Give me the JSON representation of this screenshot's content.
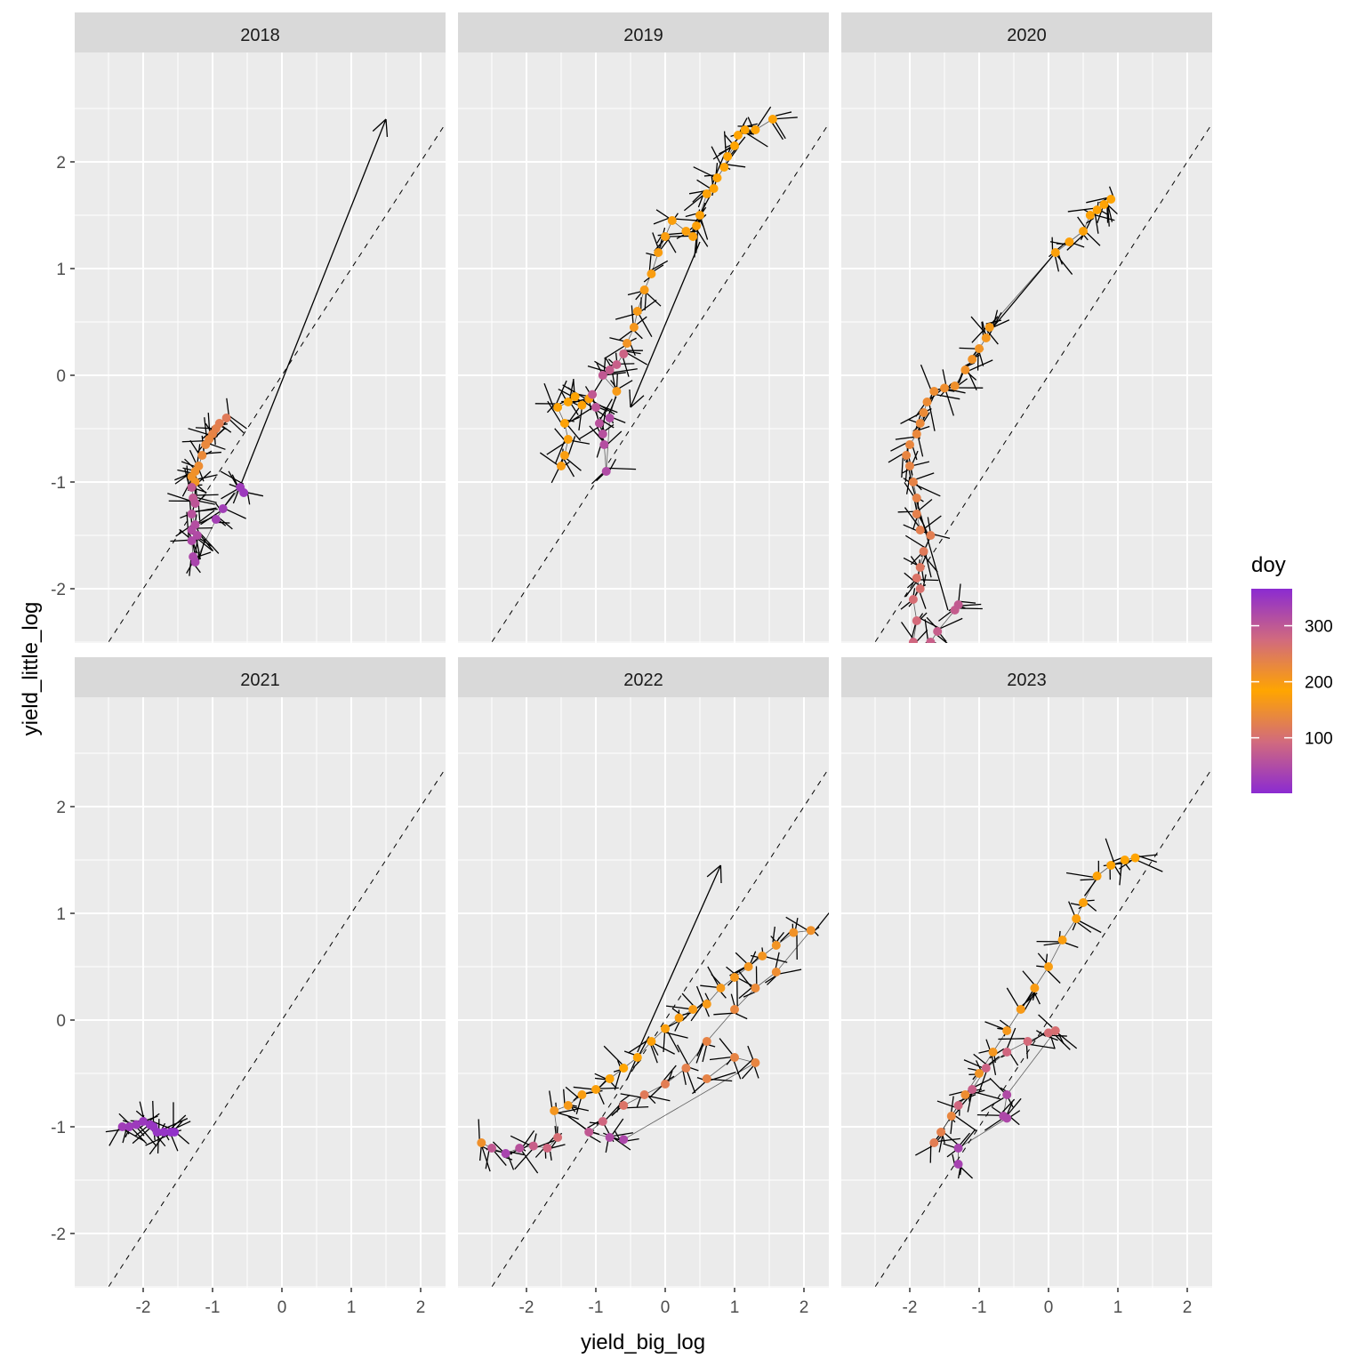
{
  "chart_data": {
    "type": "scatter",
    "subtype": "faceted path with points, segments (arrows) and identity line",
    "xlabel": "yield_big_log",
    "ylabel": "yield_little_log",
    "xlim": [
      -2.8,
      2.3
    ],
    "ylim": [
      -2.8,
      2.7
    ],
    "x_ticks": [
      -2,
      -1,
      0,
      1,
      2
    ],
    "y_ticks": [
      -2,
      -1,
      0,
      1,
      2
    ],
    "x_tick_labels": [
      "-2",
      "-1",
      "0",
      "1",
      "2"
    ],
    "y_tick_labels": [
      "-2",
      "-1",
      "0",
      "1",
      "2"
    ],
    "grid": true,
    "reference_line": {
      "type": "identity",
      "slope": 1,
      "intercept": 0,
      "style": "dashed"
    },
    "legend": {
      "title": "doy",
      "type": "colorbar",
      "placement": "right",
      "range": [
        1,
        366
      ],
      "breaks": [
        100,
        200,
        300
      ],
      "break_labels": [
        "100",
        "200",
        "300"
      ],
      "colors": {
        "low": "#8B2BD1",
        "mid": "#FFA500",
        "high": "#8B2BD1",
        "mid_value": 183,
        "q1": "#D46A7A",
        "q3": "#D46A7A"
      }
    },
    "panels": [
      {
        "title": "2018",
        "points": [
          [
            -0.8,
            -0.4,
            250
          ],
          [
            -0.9,
            -0.45,
            245
          ],
          [
            -0.95,
            -0.5,
            240
          ],
          [
            -1.0,
            -0.55,
            235
          ],
          [
            -1.05,
            -0.6,
            230
          ],
          [
            -1.1,
            -0.65,
            228
          ],
          [
            -1.15,
            -0.75,
            225
          ],
          [
            -1.2,
            -0.85,
            220
          ],
          [
            -1.25,
            -0.9,
            215
          ],
          [
            -1.3,
            -0.95,
            212
          ],
          [
            -1.25,
            -1.0,
            210
          ],
          [
            -1.3,
            -1.05,
            300
          ],
          [
            -1.28,
            -1.15,
            300
          ],
          [
            -1.25,
            -1.2,
            305
          ],
          [
            -1.3,
            -1.3,
            310
          ],
          [
            -1.25,
            -1.4,
            315
          ],
          [
            -1.3,
            -1.45,
            318
          ],
          [
            -1.22,
            -1.5,
            320
          ],
          [
            -1.3,
            -1.55,
            322
          ],
          [
            -1.28,
            -1.7,
            325
          ],
          [
            -1.25,
            -1.75,
            328
          ],
          [
            -0.95,
            -1.35,
            335
          ],
          [
            -0.85,
            -1.25,
            338
          ],
          [
            -0.6,
            -1.05,
            342
          ],
          [
            -0.55,
            -1.1,
            345
          ]
        ],
        "arrows": [
          [
            -0.7,
            -1.2,
            1.5,
            2.4
          ]
        ]
      },
      {
        "title": "2019",
        "points": [
          [
            -1.5,
            -0.85,
            170
          ],
          [
            -1.45,
            -0.75,
            172
          ],
          [
            -1.4,
            -0.6,
            175
          ],
          [
            -1.45,
            -0.45,
            178
          ],
          [
            -1.55,
            -0.3,
            180
          ],
          [
            -1.4,
            -0.25,
            182
          ],
          [
            -1.3,
            -0.2,
            185
          ],
          [
            -1.2,
            -0.28,
            188
          ],
          [
            -1.1,
            -0.22,
            190
          ],
          [
            -1.05,
            -0.18,
            300
          ],
          [
            -1.0,
            -0.3,
            305
          ],
          [
            -0.95,
            -0.45,
            310
          ],
          [
            -0.9,
            -0.55,
            312
          ],
          [
            -0.88,
            -0.65,
            315
          ],
          [
            -0.85,
            -0.9,
            320
          ],
          [
            -0.8,
            -0.4,
            318
          ],
          [
            -0.7,
            -0.15,
            200
          ],
          [
            -0.9,
            0.0,
            300
          ],
          [
            -0.8,
            0.05,
            295
          ],
          [
            -0.7,
            0.1,
            290
          ],
          [
            -0.6,
            0.2,
            285
          ],
          [
            -0.55,
            0.3,
            210
          ],
          [
            -0.45,
            0.45,
            205
          ],
          [
            -0.4,
            0.6,
            200
          ],
          [
            -0.3,
            0.8,
            198
          ],
          [
            -0.2,
            0.95,
            196
          ],
          [
            -0.1,
            1.15,
            195
          ],
          [
            0.0,
            1.3,
            194
          ],
          [
            0.1,
            1.45,
            193
          ],
          [
            0.3,
            1.35,
            192
          ],
          [
            0.4,
            1.3,
            191
          ],
          [
            0.45,
            1.4,
            190
          ],
          [
            0.5,
            1.5,
            189
          ],
          [
            0.6,
            1.7,
            188
          ],
          [
            0.7,
            1.75,
            187
          ],
          [
            0.75,
            1.85,
            186
          ],
          [
            0.85,
            1.95,
            185
          ],
          [
            0.9,
            2.05,
            184
          ],
          [
            1.0,
            2.15,
            183
          ],
          [
            1.05,
            2.25,
            182
          ],
          [
            1.15,
            2.3,
            181
          ],
          [
            1.3,
            2.3,
            180
          ],
          [
            1.55,
            2.4,
            179
          ]
        ],
        "arrows": [
          [
            0.5,
            1.25,
            -0.5,
            -0.3
          ]
        ]
      },
      {
        "title": "2020",
        "points": [
          [
            0.9,
            1.65,
            185
          ],
          [
            0.8,
            1.6,
            186
          ],
          [
            0.7,
            1.55,
            187
          ],
          [
            0.6,
            1.5,
            188
          ],
          [
            0.5,
            1.35,
            189
          ],
          [
            0.3,
            1.25,
            190
          ],
          [
            0.1,
            1.15,
            191
          ],
          [
            -0.85,
            0.45,
            200
          ],
          [
            -0.9,
            0.35,
            205
          ],
          [
            -1.0,
            0.25,
            210
          ],
          [
            -1.1,
            0.15,
            212
          ],
          [
            -1.2,
            0.05,
            214
          ],
          [
            -1.35,
            -0.1,
            216
          ],
          [
            -1.5,
            -0.12,
            218
          ],
          [
            -1.65,
            -0.15,
            220
          ],
          [
            -1.75,
            -0.25,
            222
          ],
          [
            -1.8,
            -0.35,
            224
          ],
          [
            -1.85,
            -0.45,
            226
          ],
          [
            -1.9,
            -0.55,
            228
          ],
          [
            -2.0,
            -0.65,
            230
          ],
          [
            -2.05,
            -0.75,
            232
          ],
          [
            -2.0,
            -0.85,
            234
          ],
          [
            -1.95,
            -1.0,
            236
          ],
          [
            -1.9,
            -1.15,
            238
          ],
          [
            -1.9,
            -1.3,
            240
          ],
          [
            -1.85,
            -1.45,
            242
          ],
          [
            -1.7,
            -1.5,
            244
          ],
          [
            -1.8,
            -1.65,
            250
          ],
          [
            -1.85,
            -1.8,
            255
          ],
          [
            -1.9,
            -1.9,
            260
          ],
          [
            -1.85,
            -2.0,
            265
          ],
          [
            -1.95,
            -2.1,
            270
          ],
          [
            -1.9,
            -2.3,
            275
          ],
          [
            -1.95,
            -2.5,
            280
          ],
          [
            -1.85,
            -2.6,
            285
          ],
          [
            -1.7,
            -2.5,
            290
          ],
          [
            -1.6,
            -2.4,
            292
          ],
          [
            -1.35,
            -2.2,
            295
          ],
          [
            -1.3,
            -2.15,
            298
          ]
        ],
        "arrows": [
          [
            0.1,
            1.15,
            -0.8,
            0.45
          ],
          [
            -1.45,
            -2.2,
            -2.0,
            -0.95
          ]
        ]
      },
      {
        "title": "2021",
        "points": [
          [
            -2.3,
            -1.0,
            340
          ],
          [
            -2.2,
            -1.0,
            342
          ],
          [
            -2.1,
            -0.98,
            344
          ],
          [
            -2.0,
            -0.95,
            346
          ],
          [
            -1.9,
            -0.98,
            348
          ],
          [
            -1.85,
            -1.0,
            350
          ],
          [
            -1.8,
            -1.05,
            352
          ],
          [
            -1.7,
            -1.05,
            354
          ],
          [
            -1.6,
            -1.05,
            356
          ],
          [
            -1.55,
            -1.05,
            358
          ]
        ],
        "arrows": []
      },
      {
        "title": "2022",
        "points": [
          [
            -2.65,
            -1.15,
            150
          ],
          [
            -2.5,
            -1.2,
            300
          ],
          [
            -2.3,
            -1.25,
            330
          ],
          [
            -2.1,
            -1.2,
            310
          ],
          [
            -1.9,
            -1.18,
            290
          ],
          [
            -1.7,
            -1.2,
            280
          ],
          [
            -1.55,
            -1.1,
            270
          ],
          [
            -1.6,
            -0.85,
            160
          ],
          [
            -1.4,
            -0.8,
            165
          ],
          [
            -1.2,
            -0.7,
            170
          ],
          [
            -1.0,
            -0.65,
            175
          ],
          [
            -0.8,
            -0.55,
            180
          ],
          [
            -0.6,
            -0.45,
            183
          ],
          [
            -0.4,
            -0.35,
            186
          ],
          [
            -0.2,
            -0.2,
            190
          ],
          [
            0.0,
            -0.08,
            193
          ],
          [
            0.2,
            0.02,
            195
          ],
          [
            0.4,
            0.1,
            198
          ],
          [
            0.6,
            0.15,
            200
          ],
          [
            0.8,
            0.3,
            202
          ],
          [
            1.0,
            0.4,
            204
          ],
          [
            1.2,
            0.5,
            206
          ],
          [
            1.4,
            0.6,
            208
          ],
          [
            1.6,
            0.7,
            210
          ],
          [
            1.85,
            0.82,
            212
          ],
          [
            2.1,
            0.84,
            214
          ],
          [
            1.6,
            0.45,
            220
          ],
          [
            1.3,
            0.3,
            225
          ],
          [
            1.0,
            0.1,
            230
          ],
          [
            0.6,
            -0.2,
            235
          ],
          [
            0.3,
            -0.45,
            240
          ],
          [
            0.0,
            -0.6,
            245
          ],
          [
            -0.3,
            -0.7,
            250
          ],
          [
            -0.6,
            -0.8,
            260
          ],
          [
            -0.9,
            -0.95,
            280
          ],
          [
            -1.1,
            -1.05,
            300
          ],
          [
            -0.8,
            -1.1,
            320
          ],
          [
            -0.6,
            -1.12,
            325
          ],
          [
            1.3,
            -0.4,
            232
          ],
          [
            1.0,
            -0.35,
            234
          ],
          [
            0.6,
            -0.55,
            236
          ]
        ],
        "arrows": [
          [
            -0.4,
            -0.3,
            0.8,
            1.45
          ]
        ]
      },
      {
        "title": "2023",
        "points": [
          [
            1.25,
            1.52,
            182
          ],
          [
            1.1,
            1.5,
            184
          ],
          [
            0.9,
            1.45,
            186
          ],
          [
            0.7,
            1.35,
            188
          ],
          [
            0.5,
            1.1,
            190
          ],
          [
            0.4,
            0.95,
            192
          ],
          [
            0.2,
            0.75,
            194
          ],
          [
            0.0,
            0.5,
            196
          ],
          [
            -0.2,
            0.3,
            198
          ],
          [
            -0.4,
            0.1,
            200
          ],
          [
            -0.6,
            -0.1,
            203
          ],
          [
            -0.8,
            -0.3,
            206
          ],
          [
            -1.0,
            -0.5,
            210
          ],
          [
            -1.2,
            -0.7,
            220
          ],
          [
            -1.4,
            -0.9,
            230
          ],
          [
            -1.55,
            -1.05,
            240
          ],
          [
            -1.65,
            -1.15,
            245
          ],
          [
            -1.3,
            -0.8,
            280
          ],
          [
            -1.1,
            -0.65,
            290
          ],
          [
            -0.9,
            -0.45,
            285
          ],
          [
            -0.6,
            -0.3,
            280
          ],
          [
            -0.3,
            -0.2,
            275
          ],
          [
            0.0,
            -0.12,
            270
          ],
          [
            0.1,
            -0.1,
            268
          ],
          [
            -0.6,
            -0.7,
            320
          ],
          [
            -0.65,
            -0.9,
            322
          ],
          [
            -0.6,
            -0.92,
            324
          ],
          [
            -1.3,
            -1.2,
            330
          ],
          [
            -1.3,
            -1.35,
            332
          ]
        ],
        "arrows": []
      }
    ]
  }
}
